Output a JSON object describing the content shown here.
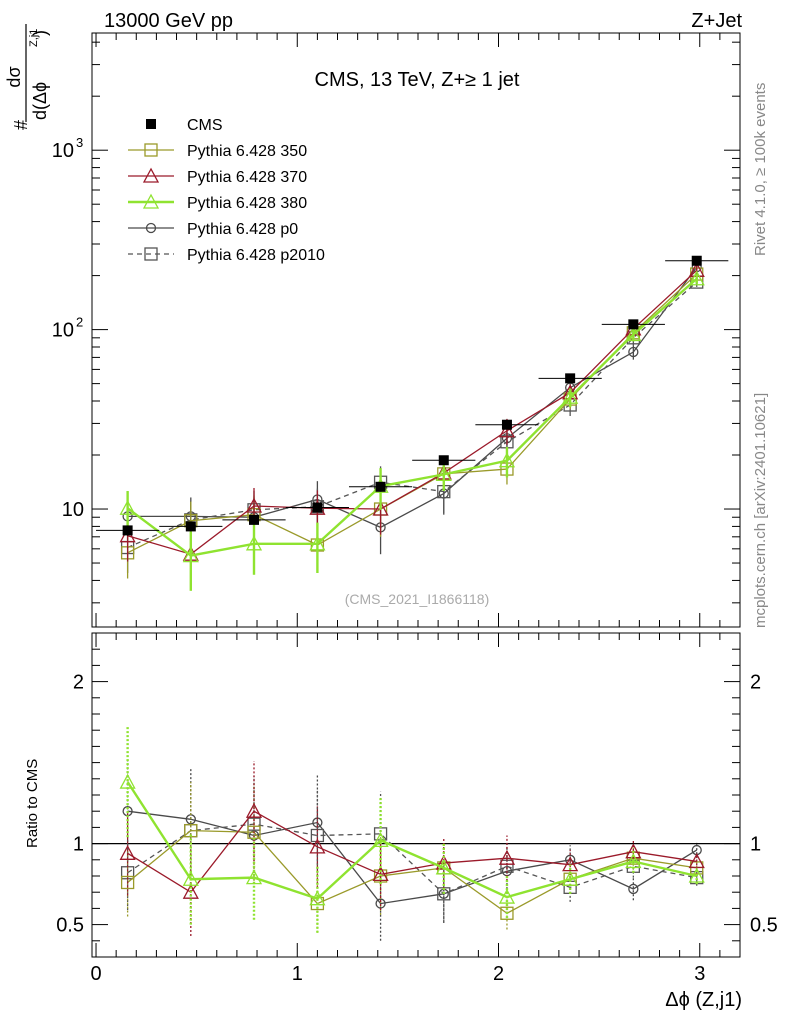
{
  "header": {
    "left": "13000 GeV pp",
    "right": "Z+Jet"
  },
  "side": {
    "rivet": "Rivet 4.1.0, ≥ 100k events",
    "mcplots": "mcplots.cern.ch [arXiv:2401.10621]"
  },
  "chart_data": {
    "type": "scatter",
    "title": "CMS, 13 TeV, Z+≥ 1 jet",
    "watermark": "(CMS_2021_I1866118)",
    "xlabel": "Δϕ (Z,j1)",
    "ylabel": {
      "hash": "#",
      "num": "dσ",
      "den": "d(Δϕ",
      "sup": "Z,j1",
      "close": ")"
    },
    "ratio_ylabel": "Ratio to CMS",
    "xlim": [
      -0.02,
      3.2
    ],
    "ylim": [
      2.2,
      4500
    ],
    "yscale": "log",
    "ratio_ylim": [
      0.3,
      2.3
    ],
    "x_ticks": [
      0,
      1,
      2,
      3
    ],
    "x_tick_labels": [
      "0",
      "1",
      "2",
      "3"
    ],
    "y_major_ticks": [
      10,
      100,
      1000
    ],
    "y_tick_labels": [
      "10",
      "10",
      "10"
    ],
    "y_tick_sups": [
      "",
      "2",
      "3"
    ],
    "ratio_ticks": [
      0.5,
      1,
      2
    ],
    "ratio_tick_labels": [
      "0.5",
      "1",
      "2"
    ],
    "x": [
      0.157,
      0.471,
      0.785,
      1.1,
      1.414,
      1.728,
      2.042,
      2.356,
      2.67,
      2.985
    ],
    "xerr": 0.157,
    "legend": [
      {
        "label": "CMS"
      },
      {
        "label": "Pythia 6.428 350"
      },
      {
        "label": "Pythia 6.428 370"
      },
      {
        "label": "Pythia 6.428 380"
      },
      {
        "label": "Pythia 6.428 p0"
      },
      {
        "label": "Pythia 6.428 p2010"
      }
    ],
    "data": {
      "name": "CMS",
      "color": "#000000",
      "values": [
        7.6,
        8.0,
        8.7,
        10.2,
        13.3,
        18.7,
        29.5,
        53.5,
        107,
        242
      ],
      "err": [
        0.5,
        0.5,
        0.5,
        0.6,
        0.8,
        1.0,
        1.5,
        2.5,
        4,
        9
      ]
    },
    "series": [
      {
        "name": "Pythia 6.428 350",
        "color": "#9a9a2a",
        "marker": "square-open",
        "dash": "",
        "values": [
          5.7,
          8.6,
          9.3,
          6.3,
          10.0,
          15.7,
          16.7,
          41,
          96,
          204
        ],
        "err": [
          1.6,
          2.4,
          2.6,
          1.8,
          3.0,
          3.0,
          3.0,
          5,
          8,
          12
        ],
        "ratio": [
          0.76,
          1.08,
          1.07,
          0.63,
          0.8,
          0.85,
          0.57,
          0.78,
          0.91,
          0.85
        ],
        "ratio_err": [
          0.21,
          0.3,
          0.3,
          0.18,
          0.24,
          0.16,
          0.1,
          0.09,
          0.07,
          0.05
        ]
      },
      {
        "name": "Pythia 6.428 370",
        "color": "#9b1a2a",
        "marker": "triangle-open",
        "dash": "",
        "values": [
          7.1,
          5.6,
          10.4,
          10.1,
          10.0,
          15.9,
          27.3,
          44.5,
          101,
          214
        ],
        "err": [
          2.0,
          1.9,
          2.7,
          2.6,
          2.8,
          3.0,
          4.5,
          5,
          8,
          13
        ],
        "ratio": [
          0.94,
          0.7,
          1.2,
          0.98,
          0.81,
          0.88,
          0.91,
          0.87,
          0.95,
          0.89
        ],
        "ratio_err": [
          0.26,
          0.27,
          0.31,
          0.25,
          0.22,
          0.16,
          0.14,
          0.09,
          0.07,
          0.05
        ]
      },
      {
        "name": "Pythia 6.428 380",
        "color": "#8fe330",
        "marker": "triangle-open",
        "dash": "",
        "values": [
          10.1,
          5.5,
          6.4,
          6.4,
          13.4,
          15.6,
          18.6,
          42,
          94,
          192
        ],
        "err": [
          2.5,
          2.0,
          2.1,
          2.0,
          3.5,
          3.0,
          3.6,
          5,
          8,
          12
        ],
        "ratio": [
          1.38,
          0.78,
          0.79,
          0.66,
          1.02,
          0.85,
          0.67,
          0.78,
          0.89,
          0.8
        ],
        "ratio_err": [
          0.34,
          0.28,
          0.26,
          0.21,
          0.27,
          0.16,
          0.13,
          0.09,
          0.07,
          0.05
        ]
      },
      {
        "name": "Pythia 6.428 p0",
        "color": "#4a4a4a",
        "marker": "circle-open",
        "dash": "",
        "values": [
          9.1,
          9.1,
          9.0,
          11.3,
          7.9,
          12.2,
          24.8,
          47.5,
          75,
          223
        ],
        "err": [
          2.4,
          2.5,
          2.6,
          3.0,
          2.3,
          2.9,
          4.0,
          5,
          7,
          13
        ],
        "ratio": [
          1.2,
          1.15,
          1.05,
          1.13,
          0.63,
          0.69,
          0.83,
          0.9,
          0.72,
          0.96
        ],
        "ratio_err": [
          0.31,
          0.32,
          0.3,
          0.29,
          0.23,
          0.18,
          0.14,
          0.09,
          0.07,
          0.05
        ]
      },
      {
        "name": "Pythia 6.428 p2010",
        "color": "#555555",
        "marker": "square-open",
        "dash": "5,4",
        "values": [
          6.1,
          8.7,
          9.9,
          10.3,
          14.1,
          12.5,
          23.7,
          38,
          90,
          184
        ],
        "err": [
          1.7,
          2.4,
          2.7,
          2.7,
          3.2,
          3.0,
          4.0,
          5,
          8,
          11
        ],
        "ratio": [
          0.82,
          1.08,
          1.12,
          1.05,
          1.06,
          0.69,
          0.86,
          0.73,
          0.86,
          0.79
        ],
        "ratio_err": [
          0.23,
          0.3,
          0.3,
          0.28,
          0.26,
          0.17,
          0.14,
          0.09,
          0.07,
          0.05
        ]
      }
    ]
  }
}
